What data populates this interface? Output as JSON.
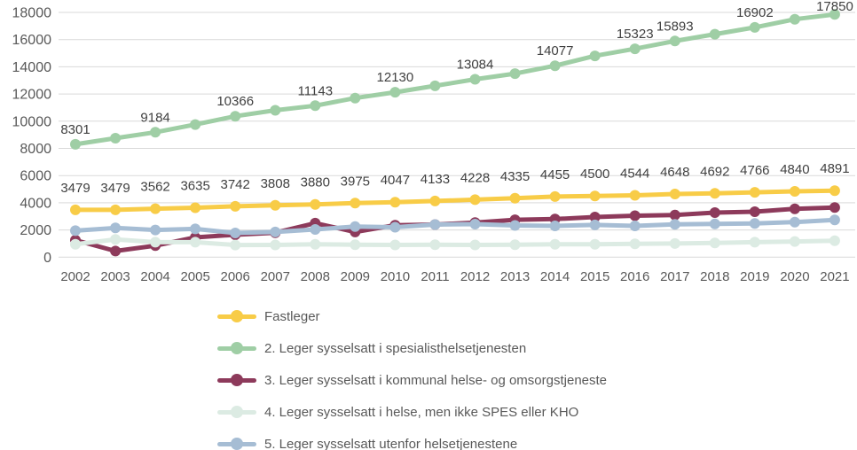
{
  "chart_data": {
    "type": "line",
    "title": "",
    "xlabel": "",
    "ylabel": "",
    "x": [
      2002,
      2003,
      2004,
      2005,
      2006,
      2007,
      2008,
      2009,
      2010,
      2011,
      2012,
      2013,
      2014,
      2015,
      2016,
      2017,
      2018,
      2019,
      2020,
      2021
    ],
    "ylim": [
      0,
      18000
    ],
    "ytick_step": 2000,
    "grid": true,
    "legend_position": "bottom-left",
    "grid_color": "#D9D9D9",
    "axis_text_color": "#595959",
    "data_label_color": "#404040",
    "series": [
      {
        "name": "Fastleger",
        "color": "#F8CC47",
        "values": [
          3479,
          3479,
          3562,
          3635,
          3742,
          3808,
          3880,
          3975,
          4047,
          4133,
          4228,
          4335,
          4455,
          4500,
          4544,
          4648,
          4692,
          4766,
          4840,
          4891
        ],
        "labels": [
          3479,
          3479,
          3562,
          3635,
          3742,
          3808,
          3880,
          3975,
          4047,
          4133,
          4228,
          4335,
          4455,
          4500,
          4544,
          4648,
          4692,
          4766,
          4840,
          4891
        ]
      },
      {
        "name": "2. Leger sysselsatt i spesialisthelsetjenesten",
        "color": "#9FCEA5",
        "values": [
          8301,
          8750,
          9184,
          9750,
          10366,
          10800,
          11143,
          11700,
          12130,
          12600,
          13084,
          13500,
          14077,
          14800,
          15323,
          15893,
          16400,
          16902,
          17500,
          17850
        ],
        "labels": [
          8301,
          null,
          9184,
          null,
          10366,
          null,
          11143,
          null,
          12130,
          null,
          13084,
          null,
          14077,
          null,
          15323,
          15893,
          null,
          16902,
          null,
          17850
        ]
      },
      {
        "name": "3. Leger sysselsatt i kommunal helse- og omsorgstjeneste",
        "color": "#8D3A5B",
        "values": [
          1250,
          450,
          850,
          1450,
          1650,
          1800,
          2500,
          1850,
          2350,
          2400,
          2550,
          2750,
          2800,
          2950,
          3050,
          3100,
          3280,
          3340,
          3560,
          3650
        ],
        "labels": null
      },
      {
        "name": "4. Leger sysselsatt i helse, men ikke SPES eller KHO",
        "color": "#DCEBE3",
        "values": [
          950,
          1300,
          1100,
          1100,
          890,
          900,
          950,
          920,
          900,
          920,
          900,
          920,
          950,
          950,
          980,
          1000,
          1050,
          1100,
          1150,
          1210
        ],
        "labels": null
      },
      {
        "name": "5. Leger sysselsatt utenfor helsetjenestene",
        "color": "#A6BDD4",
        "values": [
          1950,
          2150,
          2000,
          2080,
          1780,
          1850,
          2040,
          2250,
          2200,
          2400,
          2430,
          2330,
          2300,
          2370,
          2300,
          2410,
          2450,
          2480,
          2580,
          2740
        ],
        "labels": null
      }
    ],
    "y_ticks": [
      "0",
      "2000",
      "4000",
      "6000",
      "8000",
      "10000",
      "12000",
      "14000",
      "16000",
      "18000"
    ]
  }
}
